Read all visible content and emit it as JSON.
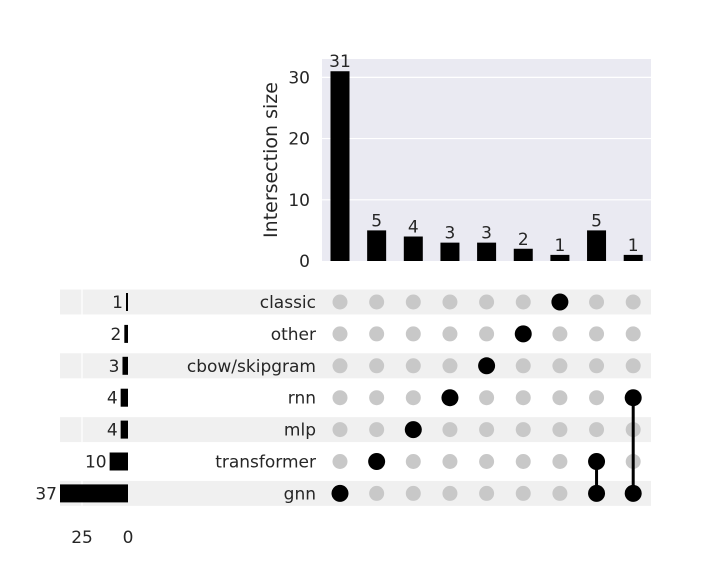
{
  "chart_data": {
    "type": "upset",
    "ylabel": "Intersection size",
    "bar_axis": {
      "ylim": [
        0,
        33
      ],
      "ticks": [
        0,
        10,
        20,
        30
      ],
      "grid": true
    },
    "set_size_axis": {
      "xlim": [
        0,
        37
      ],
      "ticks": [
        25,
        0
      ]
    },
    "sets": [
      {
        "name": "classic",
        "size": 1
      },
      {
        "name": "other",
        "size": 2
      },
      {
        "name": "cbow/skipgram",
        "size": 3
      },
      {
        "name": "rnn",
        "size": 4
      },
      {
        "name": "mlp",
        "size": 4
      },
      {
        "name": "transformer",
        "size": 10
      },
      {
        "name": "gnn",
        "size": 37
      }
    ],
    "intersections": [
      {
        "sets": [
          "gnn"
        ],
        "value": 31
      },
      {
        "sets": [
          "transformer"
        ],
        "value": 5
      },
      {
        "sets": [
          "mlp"
        ],
        "value": 4
      },
      {
        "sets": [
          "rnn"
        ],
        "value": 3
      },
      {
        "sets": [
          "cbow/skipgram"
        ],
        "value": 3
      },
      {
        "sets": [
          "other"
        ],
        "value": 2
      },
      {
        "sets": [
          "classic"
        ],
        "value": 1
      },
      {
        "sets": [
          "transformer",
          "gnn"
        ],
        "value": 5
      },
      {
        "sets": [
          "rnn",
          "gnn"
        ],
        "value": 1
      }
    ],
    "colors": {
      "bar": "#000000",
      "dot_active": "#000000",
      "dot_inactive": "#c8c8c8",
      "plot_bg": "#eaeaf2",
      "row_shade": "#f0f0f0"
    }
  }
}
